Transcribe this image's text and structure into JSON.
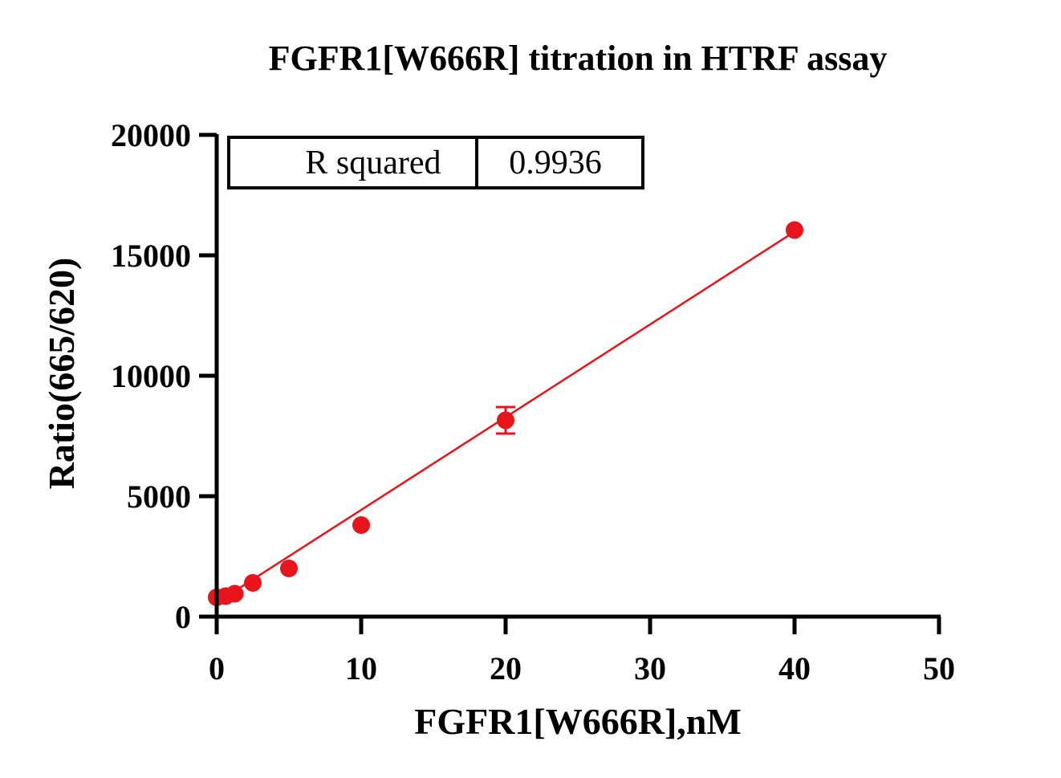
{
  "chart_data": {
    "type": "scatter",
    "title": "FGFR1[W666R] titration in HTRF assay",
    "xlabel": "FGFR1[W666R],nM",
    "ylabel": "Ratio(665/620)",
    "xlim": [
      0,
      50
    ],
    "ylim": [
      0,
      20000
    ],
    "x_ticks": [
      "0",
      "10",
      "20",
      "30",
      "40",
      "50"
    ],
    "y_ticks": [
      "0",
      "5000",
      "10000",
      "15000",
      "20000"
    ],
    "grid": false,
    "series": [
      {
        "color": "#e8141b",
        "points": [
          {
            "x": 0,
            "y": 800
          },
          {
            "x": 0.625,
            "y": 850
          },
          {
            "x": 1.25,
            "y": 950
          },
          {
            "x": 2.5,
            "y": 1400
          },
          {
            "x": 5,
            "y": 2000
          },
          {
            "x": 10,
            "y": 3800
          },
          {
            "x": 20,
            "y": 8150,
            "error": 550
          },
          {
            "x": 40,
            "y": 16050
          }
        ]
      }
    ],
    "fit_line": {
      "type": "linear",
      "x_range": [
        0,
        40
      ],
      "slope": 385,
      "intercept": 580
    },
    "stats_table": {
      "label": "R squared",
      "value": "0.9936"
    }
  }
}
